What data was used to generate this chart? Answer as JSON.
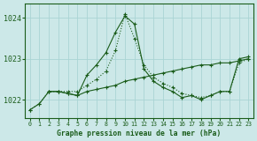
{
  "background_color": "#cce8e8",
  "grid_color": "#aad4d4",
  "line_color": "#1a5c1a",
  "title": "Graphe pression niveau de la mer (hPa)",
  "xlim": [
    -0.5,
    23.5
  ],
  "ylim": [
    1021.55,
    1024.35
  ],
  "yticks": [
    1022,
    1023,
    1024
  ],
  "series1_x": [
    0,
    1,
    2,
    3,
    4,
    5,
    6,
    7,
    8,
    9,
    10,
    11,
    12,
    13,
    14,
    15,
    16,
    17,
    18,
    19,
    20,
    21,
    22,
    23
  ],
  "series1_y": [
    1021.75,
    1021.9,
    1022.2,
    1022.2,
    1022.2,
    1022.2,
    1022.35,
    1022.5,
    1022.7,
    1023.2,
    1024.1,
    1023.5,
    1022.85,
    1022.55,
    1022.4,
    1022.3,
    1022.15,
    1022.1,
    1022.05,
    1022.1,
    1022.2,
    1022.2,
    1022.9,
    1023.0
  ],
  "series2_x": [
    0,
    1,
    2,
    3,
    4,
    5,
    6,
    7,
    8,
    9,
    10,
    11,
    12,
    13,
    14,
    15,
    16,
    17,
    18,
    19,
    20,
    21,
    22,
    23
  ],
  "series2_y": [
    1021.75,
    1021.9,
    1022.2,
    1022.2,
    1022.15,
    1022.1,
    1022.6,
    1022.85,
    1023.15,
    1023.65,
    1024.05,
    1023.85,
    1022.75,
    1022.45,
    1022.3,
    1022.2,
    1022.05,
    1022.1,
    1022.0,
    1022.1,
    1022.2,
    1022.2,
    1023.0,
    1023.05
  ],
  "series3_x": [
    2,
    3,
    4,
    5,
    6,
    7,
    8,
    9,
    10,
    11,
    12,
    13,
    14,
    15,
    16,
    17,
    18,
    19,
    20,
    21,
    22,
    23
  ],
  "series3_y": [
    1022.2,
    1022.2,
    1022.15,
    1022.1,
    1022.2,
    1022.25,
    1022.3,
    1022.35,
    1022.45,
    1022.5,
    1022.55,
    1022.6,
    1022.65,
    1022.7,
    1022.75,
    1022.8,
    1022.85,
    1022.85,
    1022.9,
    1022.9,
    1022.95,
    1023.0
  ],
  "xtick_labels": [
    "0",
    "1",
    "2",
    "3",
    "4",
    "5",
    "6",
    "7",
    "8",
    "9",
    "10",
    "11",
    "12",
    "13",
    "14",
    "15",
    "16",
    "17",
    "18",
    "19",
    "20",
    "21",
    "22",
    "23"
  ]
}
